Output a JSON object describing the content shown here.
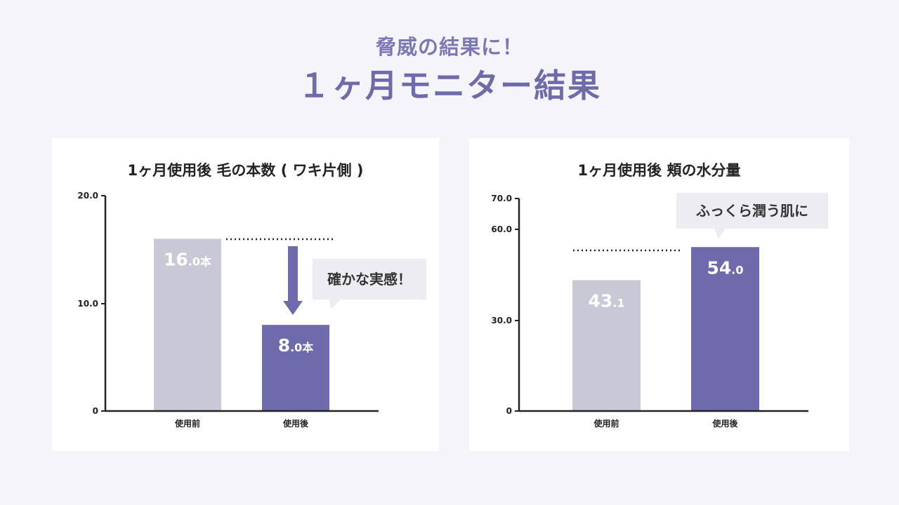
{
  "header": {
    "subtitle": "脅威の結果に！",
    "title": "１ヶ月モニター結果"
  },
  "colors": {
    "background": "#f5f4fb",
    "before_bar": "#c9c8d7",
    "after_bar": "#6f6aab",
    "callout": "#edecf3",
    "axis": "#222222"
  },
  "chart_data": [
    {
      "type": "bar",
      "title": "1ヶ月使用後 毛の本数 ( ワキ片側 )",
      "categories": [
        "使用前",
        "使用後"
      ],
      "values": [
        16.0,
        8.0
      ],
      "value_labels": [
        {
          "main": "16",
          "small": ".0本"
        },
        {
          "main": "8",
          "small": ".0本"
        }
      ],
      "yticks": [
        "0",
        "10.0",
        "20.0"
      ],
      "ylim": [
        0,
        20
      ],
      "callout": "確かな実感！",
      "grid": false
    },
    {
      "type": "bar",
      "title": "1ヶ月使用後 頬の水分量",
      "categories": [
        "使用前",
        "使用後"
      ],
      "values": [
        43.1,
        54.0
      ],
      "value_labels": [
        {
          "main": "43",
          "small": ".1"
        },
        {
          "main": "54",
          "small": ".0"
        }
      ],
      "yticks": [
        "0",
        "30.0",
        "60.0",
        "70.0"
      ],
      "ylim": [
        0,
        70
      ],
      "callout": "ふっくら潤う肌に",
      "grid": false
    }
  ]
}
